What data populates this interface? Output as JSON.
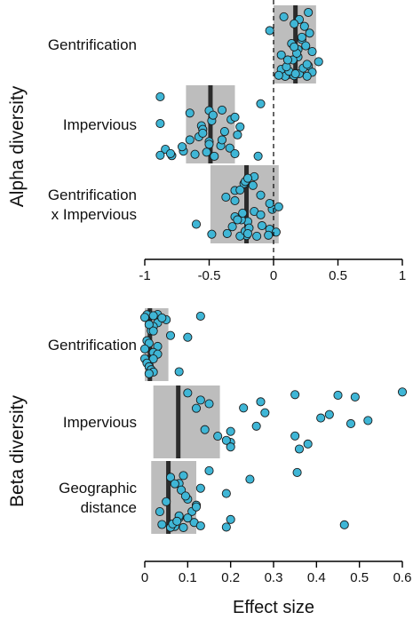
{
  "colors": {
    "point_fill": "#3fb6d6",
    "point_stroke": "#1a1a1a",
    "ci_box": "#bdbdbd",
    "median_line": "#2b2b2b",
    "axis": "#000000"
  },
  "chart_data": [
    {
      "type": "scatter",
      "panel": "alpha",
      "ylabel": "Alpha diversity",
      "xlabel": "",
      "xlim": [
        -1,
        1
      ],
      "xticks": [
        "-1",
        "-0.5",
        "0",
        "0.5",
        "1"
      ],
      "reference_line_x": 0,
      "categories": [
        {
          "label_lines": [
            "Gentrification"
          ],
          "interval": [
            0.0,
            0.33
          ],
          "median": 0.17,
          "points": [
            0.27,
            0.2,
            0.24,
            0.28,
            0.22,
            0.25,
            0.3,
            0.19,
            0.35,
            0.27,
            0.06,
            0.3,
            0.12,
            0.16,
            0.09,
            0.26,
            0.04,
            0.2,
            0.12,
            0.23,
            0.26,
            0.15,
            0.06,
            0.19,
            0.14,
            0.22,
            -0.03,
            0.16,
            0.08,
            0.17,
            0.1,
            0.11,
            0.18,
            0.16
          ]
        },
        {
          "label_lines": [
            "Impervious"
          ],
          "interval": [
            -0.68,
            -0.3
          ],
          "median": -0.49,
          "points": [
            -0.65,
            -0.33,
            -0.56,
            -0.38,
            -0.58,
            -0.5,
            -0.41,
            -0.84,
            -0.52,
            -0.61,
            -0.79,
            -0.46,
            -0.12,
            -0.88,
            -0.8,
            -0.7,
            -0.34,
            -0.5,
            -0.4,
            -0.28,
            -0.55,
            -0.88,
            -0.3,
            -0.5,
            -0.1,
            -0.88,
            -0.3,
            -0.71,
            -0.65,
            -0.55,
            -0.26,
            -0.48,
            -0.47,
            -0.4
          ]
        },
        {
          "label_lines": [
            "Gentrification",
            "x Impervious"
          ],
          "interval": [
            -0.49,
            0.04
          ],
          "median": -0.21,
          "points": [
            -0.15,
            -0.3,
            -0.2,
            -0.09,
            -0.03,
            0.02,
            -0.48,
            -0.21,
            -0.13,
            -0.26,
            -0.04,
            -0.36,
            -0.22,
            -0.19,
            -0.6,
            -0.25,
            -0.1,
            -0.01,
            -0.03,
            -0.37,
            -0.3,
            -0.23,
            -0.15,
            -0.2,
            -0.32,
            -0.28,
            -0.24,
            0.04,
            -0.3,
            -0.1,
            -0.26,
            -0.16,
            -0.22,
            -0.2
          ]
        }
      ]
    },
    {
      "type": "scatter",
      "panel": "beta",
      "ylabel": "Beta diversity",
      "xlabel": "Effect size",
      "xlim": [
        0,
        0.6
      ],
      "xticks": [
        "0",
        "0.1",
        "0.2",
        "0.3",
        "0.4",
        "0.5",
        "0.6"
      ],
      "categories": [
        {
          "label_lines": [
            "Gentrification"
          ],
          "interval": [
            0.0,
            0.055
          ],
          "median": 0.012,
          "points": [
            0.13,
            0.01,
            0.03,
            0.005,
            0.02,
            0.0,
            0.05,
            0.03,
            0.02,
            0.015,
            0.06,
            0.005,
            0.03,
            0.02,
            0.0,
            0.01,
            0.08,
            0.04,
            0.01,
            0.02,
            0.1,
            0.01,
            0.0,
            0.03,
            0.02,
            0.005,
            0.01,
            0.015,
            0.02,
            0.01
          ]
        },
        {
          "label_lines": [
            "Impervious"
          ],
          "interval": [
            0.02,
            0.175
          ],
          "median": 0.078,
          "points": [
            0.6,
            0.1,
            0.35,
            0.49,
            0.13,
            0.15,
            0.23,
            0.28,
            0.41,
            0.48,
            0.14,
            0.35,
            0.2,
            0.36,
            0.45,
            0.27,
            0.12,
            0.43,
            0.52,
            0.26,
            0.2,
            0.17,
            0.19,
            0.38,
            0.2
          ]
        },
        {
          "label_lines": [
            "Geographic",
            "distance"
          ],
          "interval": [
            0.015,
            0.12
          ],
          "median": 0.055,
          "points": [
            0.355,
            0.09,
            0.245,
            0.08,
            0.13,
            0.19,
            0.1,
            0.12,
            0.11,
            0.08,
            0.04,
            0.15,
            0.06,
            0.07,
            0.085,
            0.095,
            0.05,
            0.12,
            0.035,
            0.08,
            0.2,
            0.115,
            0.465,
            0.07,
            0.06,
            0.09,
            0.19,
            0.13,
            0.065,
            0.075,
            0.1
          ]
        }
      ]
    }
  ]
}
